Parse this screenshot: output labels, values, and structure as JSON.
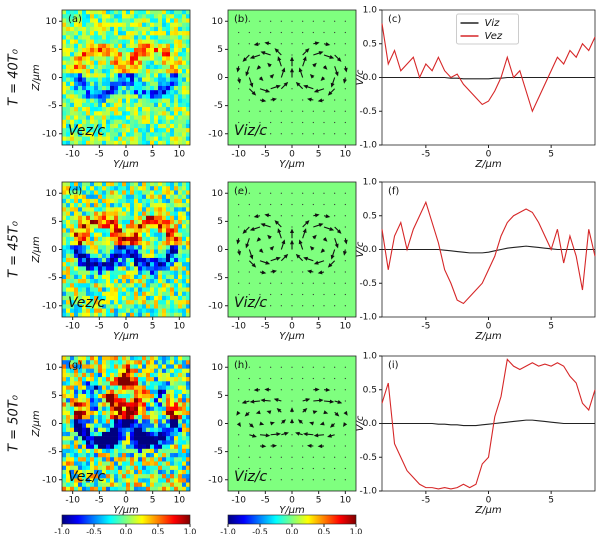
{
  "row_labels": [
    "T = 40T₀",
    "T = 45T₀",
    "T = 50T₀"
  ],
  "chart_data": [
    {
      "type": "heatmap",
      "label": "(a)",
      "annotation": "Vez/c",
      "xlabel": "Y/μm",
      "ylabel": "Z/μm",
      "xlim": [
        -12,
        12
      ],
      "ylim": [
        -12,
        12
      ],
      "xticks": [
        -10,
        -5,
        0,
        5,
        10
      ],
      "yticks": [
        -10,
        -5,
        0,
        5,
        10
      ]
    },
    {
      "type": "quiver",
      "label": "(b)",
      "annotation": "Viz/c",
      "xlabel": "Y/μm",
      "xlim": [
        -12,
        12
      ],
      "ylim": [
        -12,
        12
      ],
      "xticks": [
        -10,
        -5,
        0,
        5,
        10
      ],
      "yticks": [
        -10,
        -5,
        0,
        5,
        10
      ]
    },
    {
      "type": "line",
      "label": "(c)",
      "xlabel": "Z/μm",
      "ylabel": "V/c",
      "legend": "upper center",
      "x": [
        -8.5,
        -8,
        -7.5,
        -7,
        -6.5,
        -6,
        -5.5,
        -5,
        -4.5,
        -4,
        -3.5,
        -3,
        -2.5,
        -2,
        -1.5,
        -1,
        -0.5,
        0,
        0.5,
        1,
        1.5,
        2,
        2.5,
        3,
        3.5,
        4,
        4.5,
        5,
        5.5,
        6,
        6.5,
        7,
        7.5,
        8,
        8.5
      ],
      "xlim": [
        -8.5,
        8.5
      ],
      "xticks": [
        -5,
        0,
        5
      ],
      "ylim": [
        -1,
        1
      ],
      "yticks": [
        {
          "value": -1,
          "label": "-1.0"
        },
        {
          "value": -0.5,
          "label": "-0.5"
        },
        {
          "value": 0,
          "label": "0.0"
        },
        {
          "value": 0.5,
          "label": "0.5"
        },
        {
          "value": 1,
          "label": "1.0"
        }
      ],
      "series": [
        {
          "name": "Viz",
          "color": "#222222",
          "values": [
            0,
            0,
            0,
            0,
            0,
            0,
            0,
            0,
            0,
            0,
            0,
            -0.01,
            -0.01,
            -0.02,
            -0.02,
            -0.02,
            -0.02,
            -0.02,
            -0.01,
            -0.01,
            0,
            0,
            0,
            0,
            0,
            0,
            0,
            0,
            0,
            0,
            0,
            0,
            0,
            0,
            0
          ]
        },
        {
          "name": "Vez",
          "color": "#d62728",
          "values": [
            0.8,
            0.2,
            0.4,
            0.1,
            0.2,
            0.3,
            0.0,
            0.2,
            0.1,
            0.3,
            0.1,
            0.0,
            0.05,
            -0.1,
            -0.2,
            -0.3,
            -0.4,
            -0.35,
            -0.2,
            0.0,
            0.3,
            0.0,
            0.1,
            -0.2,
            -0.5,
            -0.3,
            -0.1,
            0.1,
            0.3,
            0.2,
            0.4,
            0.3,
            0.5,
            0.4,
            0.6
          ]
        }
      ]
    },
    {
      "type": "heatmap",
      "label": "(d)",
      "annotation": "Vez/c",
      "xlabel": "Y/μm",
      "ylabel": "Z/μm",
      "xlim": [
        -12,
        12
      ],
      "ylim": [
        -12,
        12
      ],
      "xticks": [
        -10,
        -5,
        0,
        5,
        10
      ],
      "yticks": [
        -10,
        -5,
        0,
        5,
        10
      ]
    },
    {
      "type": "quiver",
      "label": "(e)",
      "annotation": "Viz/c",
      "xlabel": "Y/μm",
      "xlim": [
        -12,
        12
      ],
      "ylim": [
        -12,
        12
      ],
      "xticks": [
        -10,
        -5,
        0,
        5,
        10
      ],
      "yticks": [
        -10,
        -5,
        0,
        5,
        10
      ]
    },
    {
      "type": "line",
      "label": "(f)",
      "xlabel": "Z/μm",
      "ylabel": "V/c",
      "x": [
        -8.5,
        -8,
        -7.5,
        -7,
        -6.5,
        -6,
        -5.5,
        -5,
        -4.5,
        -4,
        -3.5,
        -3,
        -2.5,
        -2,
        -1.5,
        -1,
        -0.5,
        0,
        0.5,
        1,
        1.5,
        2,
        2.5,
        3,
        3.5,
        4,
        4.5,
        5,
        5.5,
        6,
        6.5,
        7,
        7.5,
        8,
        8.5
      ],
      "xlim": [
        -8.5,
        8.5
      ],
      "xticks": [
        -5,
        0,
        5
      ],
      "ylim": [
        -1,
        1
      ],
      "yticks": [
        {
          "value": -1,
          "label": "-1.0"
        },
        {
          "value": -0.5,
          "label": "-0.5"
        },
        {
          "value": 0,
          "label": "0.0"
        },
        {
          "value": 0.5,
          "label": "0.5"
        },
        {
          "value": 1,
          "label": "1.0"
        }
      ],
      "series": [
        {
          "name": "Viz",
          "color": "#222222",
          "values": [
            0,
            0,
            0,
            0,
            0,
            0,
            0,
            0,
            0,
            0,
            -0.01,
            -0.02,
            -0.03,
            -0.04,
            -0.05,
            -0.05,
            -0.05,
            -0.04,
            -0.02,
            0,
            0.02,
            0.03,
            0.04,
            0.05,
            0.04,
            0.03,
            0.02,
            0.01,
            0,
            0,
            0,
            0,
            0,
            0,
            0
          ]
        },
        {
          "name": "Vez",
          "color": "#d62728",
          "values": [
            0.3,
            -0.3,
            0.2,
            0.4,
            0.0,
            0.3,
            0.5,
            0.7,
            0.4,
            0.1,
            -0.3,
            -0.5,
            -0.75,
            -0.8,
            -0.7,
            -0.6,
            -0.5,
            -0.3,
            -0.1,
            0.2,
            0.4,
            0.5,
            0.55,
            0.6,
            0.55,
            0.4,
            0.2,
            0.0,
            0.3,
            -0.2,
            0.2,
            -0.1,
            -0.6,
            0.3,
            -0.1
          ]
        }
      ]
    },
    {
      "type": "heatmap",
      "label": "(g)",
      "annotation": "Vez/c",
      "xlabel": "Y/μm",
      "ylabel": "Z/μm",
      "xlim": [
        -12,
        12
      ],
      "ylim": [
        -12,
        12
      ],
      "xticks": [
        -10,
        -5,
        0,
        5,
        10
      ],
      "yticks": [
        -10,
        -5,
        0,
        5,
        10
      ]
    },
    {
      "type": "quiver",
      "label": "(h)",
      "annotation": "Viz/c",
      "xlabel": "Y/μm",
      "xlim": [
        -12,
        12
      ],
      "ylim": [
        -12,
        12
      ],
      "xticks": [
        -10,
        -5,
        0,
        5,
        10
      ],
      "yticks": [
        -10,
        -5,
        0,
        5,
        10
      ]
    },
    {
      "type": "line",
      "label": "(i)",
      "xlabel": "Z/μm",
      "ylabel": "V/c",
      "x": [
        -8.5,
        -8,
        -7.5,
        -7,
        -6.5,
        -6,
        -5.5,
        -5,
        -4.5,
        -4,
        -3.5,
        -3,
        -2.5,
        -2,
        -1.5,
        -1,
        -0.5,
        0,
        0.5,
        1,
        1.5,
        2,
        2.5,
        3,
        3.5,
        4,
        4.5,
        5,
        5.5,
        6,
        6.5,
        7,
        7.5,
        8,
        8.5
      ],
      "xlim": [
        -8.5,
        8.5
      ],
      "xticks": [
        -5,
        0,
        5
      ],
      "ylim": [
        -1,
        1
      ],
      "yticks": [
        {
          "value": -1,
          "label": "-1.0"
        },
        {
          "value": -0.5,
          "label": "-0.5"
        },
        {
          "value": 0,
          "label": "0.0"
        },
        {
          "value": 0.5,
          "label": "0.5"
        },
        {
          "value": 1,
          "label": "1.0"
        }
      ],
      "series": [
        {
          "name": "Viz",
          "color": "#222222",
          "values": [
            0,
            0,
            0,
            0,
            0,
            0,
            0,
            0,
            0,
            -0.01,
            -0.01,
            -0.02,
            -0.02,
            -0.03,
            -0.03,
            -0.03,
            -0.02,
            -0.01,
            0,
            0.01,
            0.02,
            0.03,
            0.04,
            0.05,
            0.05,
            0.04,
            0.03,
            0.02,
            0.01,
            0,
            0,
            0,
            0,
            0,
            0
          ]
        },
        {
          "name": "Vez",
          "color": "#d62728",
          "values": [
            0.3,
            0.6,
            -0.3,
            -0.5,
            -0.7,
            -0.8,
            -0.9,
            -0.95,
            -0.95,
            -0.97,
            -0.95,
            -0.97,
            -0.95,
            -0.9,
            -0.95,
            -0.9,
            -0.6,
            -0.5,
            0.1,
            0.4,
            0.95,
            0.85,
            0.8,
            0.85,
            0.9,
            0.85,
            0.88,
            0.85,
            0.9,
            0.85,
            0.7,
            0.6,
            0.3,
            0.2,
            0.5
          ]
        }
      ]
    },
    {
      "type": "colorbar",
      "lim": [
        -1,
        1
      ],
      "ticks": [
        {
          "value": -1,
          "label": "-1.0"
        },
        {
          "value": -0.5,
          "label": "-0.5"
        },
        {
          "value": 0,
          "label": "0.0"
        },
        {
          "value": 0.5,
          "label": "0.5"
        },
        {
          "value": 1,
          "label": "1.0"
        }
      ]
    },
    {
      "type": "colorbar",
      "lim": [
        -1,
        1
      ],
      "ticks": [
        {
          "value": -1,
          "label": "-1.0"
        },
        {
          "value": -0.5,
          "label": "-0.5"
        },
        {
          "value": 0,
          "label": "0.0"
        },
        {
          "value": 0.5,
          "label": "0.5"
        },
        {
          "value": 1,
          "label": "1.0"
        }
      ]
    }
  ]
}
